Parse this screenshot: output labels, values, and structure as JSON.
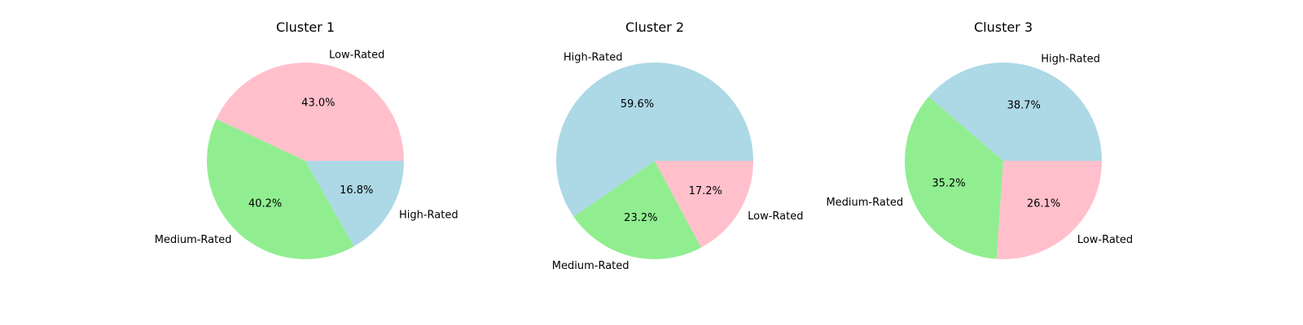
{
  "chart_data": [
    {
      "type": "pie",
      "title": "Cluster 1",
      "slices": [
        {
          "label": "Low-Rated",
          "value": 43.0,
          "pct_label": "43.0%",
          "color": "#ffc0cb"
        },
        {
          "label": "Medium-Rated",
          "value": 40.2,
          "pct_label": "40.2%",
          "color": "#90ee90"
        },
        {
          "label": "High-Rated",
          "value": 16.8,
          "pct_label": "16.8%",
          "color": "#add8e6"
        }
      ]
    },
    {
      "type": "pie",
      "title": "Cluster 2",
      "slices": [
        {
          "label": "High-Rated",
          "value": 59.6,
          "pct_label": "59.6%",
          "color": "#add8e6"
        },
        {
          "label": "Medium-Rated",
          "value": 23.2,
          "pct_label": "23.2%",
          "color": "#90ee90"
        },
        {
          "label": "Low-Rated",
          "value": 17.2,
          "pct_label": "17.2%",
          "color": "#ffc0cb"
        }
      ]
    },
    {
      "type": "pie",
      "title": "Cluster 3",
      "slices": [
        {
          "label": "High-Rated",
          "value": 38.7,
          "pct_label": "38.7%",
          "color": "#add8e6"
        },
        {
          "label": "Medium-Rated",
          "value": 35.2,
          "pct_label": "35.2%",
          "color": "#90ee90"
        },
        {
          "label": "Low-Rated",
          "value": 26.1,
          "pct_label": "26.1%",
          "color": "#ffc0cb"
        }
      ]
    }
  ]
}
